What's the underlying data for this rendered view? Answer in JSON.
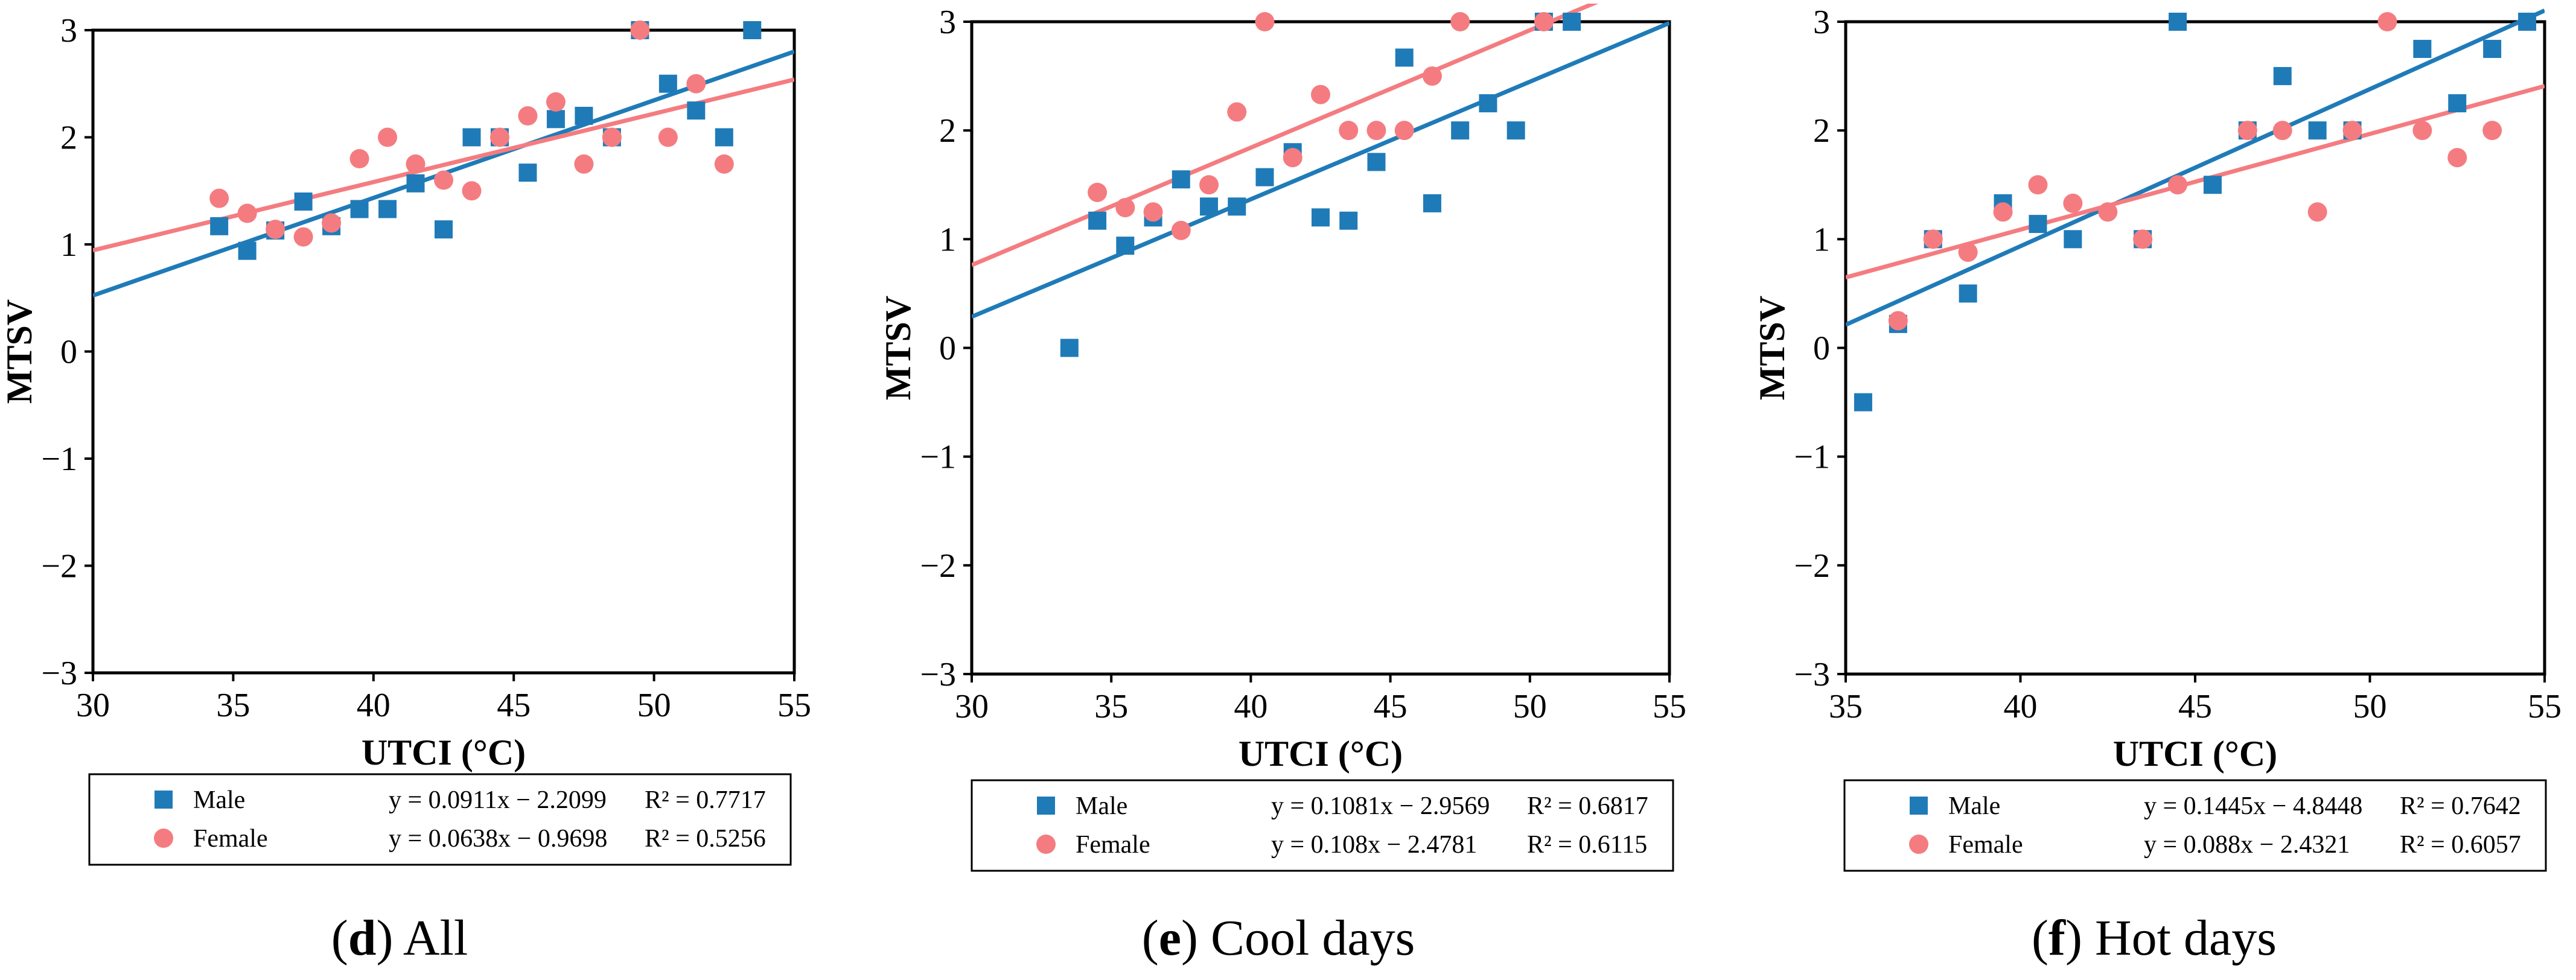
{
  "colors": {
    "male": "#1f7bb8",
    "female": "#f47c80",
    "axis": "#000000",
    "background": "#ffffff"
  },
  "chart_data": [
    {
      "type": "scatter",
      "panel_letter": "d",
      "caption": "All",
      "xlabel": "UTCI (°C)",
      "ylabel": "MTSV",
      "xlim": [
        30,
        55
      ],
      "ylim": [
        -3,
        3
      ],
      "xticks": [
        30,
        35,
        40,
        45,
        50,
        55
      ],
      "xtick_labels": [
        "30",
        "35",
        "40",
        "45",
        "50",
        "55"
      ],
      "yticks": [
        -3,
        -2,
        -1,
        0,
        1,
        2,
        3
      ],
      "ytick_labels": [
        "−3",
        "−2",
        "−1",
        "0",
        "1",
        "2",
        "3"
      ],
      "series": [
        {
          "name": "Male",
          "marker": "square",
          "color": "#1f7bb8",
          "equation": "y = 0.0911x − 2.2099",
          "r2_label": "R² = 0.7717",
          "slope": 0.0911,
          "intercept": -2.2099,
          "points": [
            [
              34.5,
              1.17
            ],
            [
              35.5,
              0.94
            ],
            [
              36.5,
              1.13
            ],
            [
              37.5,
              1.4
            ],
            [
              38.5,
              1.17
            ],
            [
              39.5,
              1.33
            ],
            [
              40.5,
              1.33
            ],
            [
              41.5,
              1.57
            ],
            [
              42.5,
              1.14
            ],
            [
              43.5,
              2.0
            ],
            [
              44.5,
              2.0
            ],
            [
              45.5,
              1.67
            ],
            [
              46.5,
              2.17
            ],
            [
              47.5,
              2.2
            ],
            [
              48.5,
              2.0
            ],
            [
              49.5,
              3.0
            ],
            [
              50.5,
              2.5
            ],
            [
              51.5,
              2.25
            ],
            [
              52.5,
              2.0
            ],
            [
              53.5,
              3.0
            ]
          ]
        },
        {
          "name": "Female",
          "marker": "circle",
          "color": "#f47c80",
          "equation": "y = 0.0638x − 0.9698",
          "r2_label": "R² = 0.5256",
          "slope": 0.0638,
          "intercept": -0.9698,
          "points": [
            [
              34.5,
              1.43
            ],
            [
              35.5,
              1.29
            ],
            [
              36.5,
              1.14
            ],
            [
              37.5,
              1.07
            ],
            [
              38.5,
              1.2
            ],
            [
              39.5,
              1.8
            ],
            [
              40.5,
              2.0
            ],
            [
              41.5,
              1.75
            ],
            [
              42.5,
              1.6
            ],
            [
              43.5,
              1.5
            ],
            [
              44.5,
              2.0
            ],
            [
              45.5,
              2.2
            ],
            [
              46.5,
              2.33
            ],
            [
              47.5,
              1.75
            ],
            [
              48.5,
              2.0
            ],
            [
              49.5,
              3.0
            ],
            [
              50.5,
              2.0
            ],
            [
              51.5,
              2.5
            ],
            [
              52.5,
              1.75
            ]
          ]
        }
      ]
    },
    {
      "type": "scatter",
      "panel_letter": "e",
      "caption": "Cool days",
      "xlabel": "UTCI (°C)",
      "ylabel": "MTSV",
      "xlim": [
        30,
        55
      ],
      "ylim": [
        -3,
        3
      ],
      "xticks": [
        30,
        35,
        40,
        45,
        50,
        55
      ],
      "xtick_labels": [
        "30",
        "35",
        "40",
        "45",
        "50",
        "55"
      ],
      "yticks": [
        -3,
        -2,
        -1,
        0,
        1,
        2,
        3
      ],
      "ytick_labels": [
        "−3",
        "−2",
        "−1",
        "0",
        "1",
        "2",
        "3"
      ],
      "series": [
        {
          "name": "Male",
          "marker": "square",
          "color": "#1f7bb8",
          "equation": "y = 0.1081x − 2.9569",
          "r2_label": "R² = 0.6817",
          "slope": 0.1081,
          "intercept": -2.9569,
          "points": [
            [
              33.5,
              0.0
            ],
            [
              34.5,
              1.17
            ],
            [
              35.5,
              0.94
            ],
            [
              36.5,
              1.2
            ],
            [
              37.5,
              1.55
            ],
            [
              38.5,
              1.3
            ],
            [
              39.5,
              1.3
            ],
            [
              40.5,
              1.57
            ],
            [
              41.5,
              1.8
            ],
            [
              42.5,
              1.2
            ],
            [
              43.5,
              1.17
            ],
            [
              44.5,
              1.71
            ],
            [
              45.5,
              2.67
            ],
            [
              46.5,
              1.33
            ],
            [
              47.5,
              2.0
            ],
            [
              48.5,
              2.25
            ],
            [
              49.5,
              2.0
            ],
            [
              50.5,
              3.0
            ],
            [
              51.5,
              3.0
            ]
          ]
        },
        {
          "name": "Female",
          "marker": "circle",
          "color": "#f47c80",
          "equation": "y = 0.108x − 2.4781",
          "r2_label": "R² = 0.6115",
          "slope": 0.108,
          "intercept": -2.4781,
          "points": [
            [
              34.5,
              1.43
            ],
            [
              35.5,
              1.29
            ],
            [
              36.5,
              1.25
            ],
            [
              37.5,
              1.08
            ],
            [
              38.5,
              1.5
            ],
            [
              39.5,
              2.17
            ],
            [
              40.5,
              3.0
            ],
            [
              41.5,
              1.75
            ],
            [
              42.5,
              2.33
            ],
            [
              43.5,
              2.0
            ],
            [
              44.5,
              2.0
            ],
            [
              45.5,
              2.0
            ],
            [
              46.5,
              2.5
            ],
            [
              47.5,
              3.0
            ],
            [
              50.5,
              3.0
            ]
          ]
        }
      ]
    },
    {
      "type": "scatter",
      "panel_letter": "f",
      "caption": "Hot days",
      "xlabel": "UTCI (°C)",
      "ylabel": "MTSV",
      "xlim": [
        35,
        55
      ],
      "ylim": [
        -3,
        3
      ],
      "xticks": [
        35,
        40,
        45,
        50,
        55
      ],
      "xtick_labels": [
        "35",
        "40",
        "45",
        "50",
        "55"
      ],
      "yticks": [
        -3,
        -2,
        -1,
        0,
        1,
        2,
        3
      ],
      "ytick_labels": [
        "−3",
        "−2",
        "−1",
        "0",
        "1",
        "2",
        "3"
      ],
      "series": [
        {
          "name": "Male",
          "marker": "square",
          "color": "#1f7bb8",
          "equation": "y = 0.1445x − 4.8448",
          "r2_label": "R² = 0.7642",
          "slope": 0.1445,
          "intercept": -4.8448,
          "points": [
            [
              35.5,
              -0.5
            ],
            [
              36.5,
              0.22
            ],
            [
              37.5,
              1.0
            ],
            [
              38.5,
              0.5
            ],
            [
              39.5,
              1.33
            ],
            [
              40.5,
              1.14
            ],
            [
              41.5,
              1.0
            ],
            [
              43.5,
              1.0
            ],
            [
              44.5,
              3.0
            ],
            [
              45.5,
              1.5
            ],
            [
              46.5,
              2.0
            ],
            [
              47.5,
              2.5
            ],
            [
              48.5,
              2.0
            ],
            [
              49.5,
              2.0
            ],
            [
              51.5,
              2.75
            ],
            [
              52.5,
              2.25
            ],
            [
              53.5,
              2.75
            ],
            [
              54.5,
              3.0
            ]
          ]
        },
        {
          "name": "Female",
          "marker": "circle",
          "color": "#f47c80",
          "equation": "y = 0.088x − 2.4321",
          "r2_label": "R² = 0.6057",
          "slope": 0.088,
          "intercept": -2.4321,
          "points": [
            [
              36.5,
              0.25
            ],
            [
              37.5,
              1.0
            ],
            [
              38.5,
              0.88
            ],
            [
              39.5,
              1.25
            ],
            [
              40.5,
              1.5
            ],
            [
              41.5,
              1.33
            ],
            [
              42.5,
              1.25
            ],
            [
              43.5,
              1.0
            ],
            [
              44.5,
              1.5
            ],
            [
              46.5,
              2.0
            ],
            [
              47.5,
              2.0
            ],
            [
              48.5,
              1.25
            ],
            [
              49.5,
              2.0
            ],
            [
              50.5,
              3.0
            ],
            [
              51.5,
              2.0
            ],
            [
              52.5,
              1.75
            ],
            [
              53.5,
              2.0
            ]
          ]
        }
      ]
    }
  ]
}
